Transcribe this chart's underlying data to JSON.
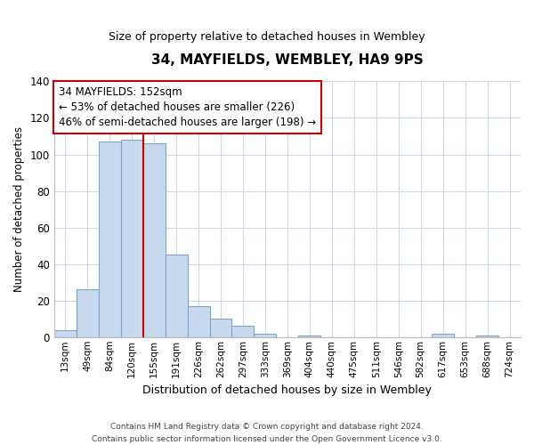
{
  "title": "34, MAYFIELDS, WEMBLEY, HA9 9PS",
  "subtitle": "Size of property relative to detached houses in Wembley",
  "xlabel": "Distribution of detached houses by size in Wembley",
  "ylabel": "Number of detached properties",
  "bar_labels": [
    "13sqm",
    "49sqm",
    "84sqm",
    "120sqm",
    "155sqm",
    "191sqm",
    "226sqm",
    "262sqm",
    "297sqm",
    "333sqm",
    "369sqm",
    "404sqm",
    "440sqm",
    "475sqm",
    "511sqm",
    "546sqm",
    "582sqm",
    "617sqm",
    "653sqm",
    "688sqm",
    "724sqm"
  ],
  "bar_values": [
    4,
    26,
    107,
    108,
    106,
    45,
    17,
    10,
    6,
    2,
    0,
    1,
    0,
    0,
    0,
    0,
    0,
    2,
    0,
    1,
    0
  ],
  "bar_color": "#c8d9ee",
  "bar_edge_color": "#7ba3cc",
  "ylim": [
    0,
    140
  ],
  "yticks": [
    0,
    20,
    40,
    60,
    80,
    100,
    120,
    140
  ],
  "vline_x": 3.5,
  "vline_color": "#cc0000",
  "annotation_line1": "34 MAYFIELDS: 152sqm",
  "annotation_line2": "← 53% of detached houses are smaller (226)",
  "annotation_line3": "46% of semi-detached houses are larger (198) →",
  "annotation_box_color": "#ffffff",
  "annotation_box_edge": "#cc0000",
  "footer_line1": "Contains HM Land Registry data © Crown copyright and database right 2024.",
  "footer_line2": "Contains public sector information licensed under the Open Government Licence v3.0.",
  "background_color": "#ffffff",
  "grid_color": "#c8d8e8"
}
